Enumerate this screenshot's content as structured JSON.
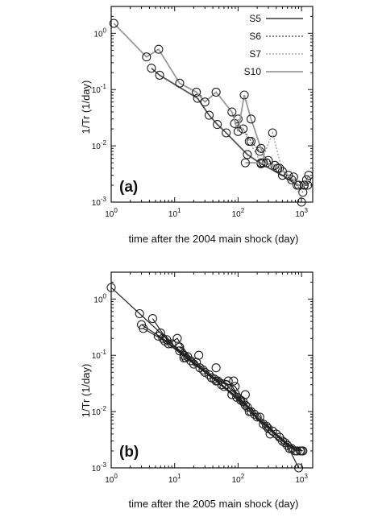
{
  "chart_data": [
    {
      "panel": "(a)",
      "type": "line",
      "xscale": "log",
      "yscale": "log",
      "xlabel": "time after the 2004 main shock (day)",
      "ylabel": "1/Tr (1/day)",
      "xlim": [
        1,
        1500
      ],
      "ylim": [
        0.001,
        3
      ],
      "xticks": [
        {
          "v": 1,
          "b": "10",
          "e": "0"
        },
        {
          "v": 10,
          "b": "10",
          "e": "1"
        },
        {
          "v": 100,
          "b": "10",
          "e": "2"
        },
        {
          "v": 1000,
          "b": "10",
          "e": "3"
        }
      ],
      "yticks": [
        {
          "v": 0.001,
          "b": "10",
          "e": "-3"
        },
        {
          "v": 0.01,
          "b": "10",
          "e": "-2"
        },
        {
          "v": 0.1,
          "b": "10",
          "e": "-1"
        },
        {
          "v": 1,
          "b": "10",
          "e": "0"
        }
      ],
      "legend_position": "top-right",
      "series": [
        {
          "name": "S5",
          "color": "#555555",
          "width": 1.8,
          "dash": "",
          "x": [
            4.3,
            5.8,
            23,
            35,
            47,
            65,
            140,
            230,
            500,
            850,
            1100,
            1250
          ],
          "y": [
            0.24,
            0.18,
            0.07,
            0.035,
            0.024,
            0.017,
            0.007,
            0.0048,
            0.003,
            0.002,
            0.002,
            0.002
          ]
        },
        {
          "name": "S6",
          "color": "#444444",
          "width": 1.3,
          "dash": "2,2",
          "x": [
            88,
            120,
            160,
            220,
            300,
            450,
            700,
            1050
          ],
          "y": [
            0.025,
            0.02,
            0.012,
            0.008,
            0.0055,
            0.004,
            0.0025,
            0.0015
          ]
        },
        {
          "name": "S7",
          "color": "#999999",
          "width": 1.3,
          "dash": "2,2",
          "x": [
            100,
            150,
            230,
            350,
            500,
            750,
            1000
          ],
          "y": [
            0.03,
            0.012,
            0.005,
            0.017,
            0.0035,
            0.0028,
            0.001
          ]
        },
        {
          "name": "S10",
          "color": "#999999",
          "width": 1.8,
          "dash": "",
          "x": [
            1.1,
            3.6,
            5.6,
            12,
            22,
            30,
            45,
            80,
            100,
            125,
            160,
            230,
            280,
            380,
            620,
            900,
            1100,
            1200,
            1300
          ],
          "y": [
            1.5,
            0.38,
            0.52,
            0.13,
            0.09,
            0.06,
            0.09,
            0.04,
            0.018,
            0.08,
            0.03,
            0.009,
            0.005,
            0.0045,
            0.003,
            0.002,
            0.002,
            0.0025,
            0.003
          ]
        },
        {
          "name": "",
          "color": "#999999",
          "width": 1.8,
          "dash": "",
          "x": [
            130,
            250,
            420
          ],
          "y": [
            0.005,
            0.005,
            0.004
          ]
        }
      ]
    },
    {
      "panel": "(b)",
      "type": "line",
      "xscale": "log",
      "yscale": "log",
      "xlabel": "time after the 2005 main shock (day)",
      "ylabel": "1/Tr (1/day)",
      "xlim": [
        1,
        1500
      ],
      "ylim": [
        0.001,
        3
      ],
      "xticks": [
        {
          "v": 1,
          "b": "10",
          "e": "0"
        },
        {
          "v": 10,
          "b": "10",
          "e": "1"
        },
        {
          "v": 100,
          "b": "10",
          "e": "2"
        },
        {
          "v": 1000,
          "b": "10",
          "e": "3"
        }
      ],
      "yticks": [
        {
          "v": 0.001,
          "b": "10",
          "e": "-3"
        },
        {
          "v": 0.01,
          "b": "10",
          "e": "-2"
        },
        {
          "v": 0.1,
          "b": "10",
          "e": "-1"
        },
        {
          "v": 1,
          "b": "10",
          "e": "0"
        }
      ],
      "series": [
        {
          "name": "",
          "color": "#222222",
          "width": 1.2,
          "dash": "",
          "x": [
            1.0,
            2.8,
            6.0,
            12,
            25,
            45,
            80,
            150,
            300,
            600,
            900
          ],
          "y": [
            1.6,
            0.55,
            0.25,
            0.12,
            0.06,
            0.035,
            0.02,
            0.01,
            0.005,
            0.0025,
            0.001
          ]
        },
        {
          "name": "",
          "color": "#222222",
          "width": 1.2,
          "dash": "",
          "x": [
            3.0,
            6.5,
            14,
            28,
            55,
            95,
            180,
            350,
            700,
            950
          ],
          "y": [
            0.35,
            0.2,
            0.1,
            0.055,
            0.03,
            0.018,
            0.009,
            0.0045,
            0.0022,
            0.002
          ]
        },
        {
          "name": "",
          "color": "#222222",
          "width": 1.2,
          "dash": "",
          "x": [
            3.2,
            7.0,
            15,
            30,
            60,
            110,
            200,
            400,
            850
          ],
          "y": [
            0.3,
            0.18,
            0.09,
            0.05,
            0.028,
            0.016,
            0.008,
            0.004,
            0.002
          ]
        },
        {
          "name": "",
          "color": "#222222",
          "width": 1.2,
          "dash": "",
          "x": [
            4.5,
            7.5,
            16,
            35,
            65,
            120,
            220,
            450,
            800
          ],
          "y": [
            0.45,
            0.19,
            0.095,
            0.045,
            0.03,
            0.015,
            0.008,
            0.0035,
            0.002
          ]
        },
        {
          "name": "",
          "color": "#222222",
          "width": 1.2,
          "dash": "",
          "x": [
            5.5,
            9,
            18,
            38,
            70,
            130,
            250,
            500,
            1000
          ],
          "y": [
            0.22,
            0.16,
            0.08,
            0.04,
            0.035,
            0.013,
            0.006,
            0.003,
            0.002
          ]
        },
        {
          "name": "",
          "color": "#222222",
          "width": 1.2,
          "dash": "",
          "x": [
            8,
            11,
            20,
            42,
            80,
            140,
            280,
            550,
            1050
          ],
          "y": [
            0.16,
            0.2,
            0.07,
            0.038,
            0.02,
            0.012,
            0.0055,
            0.0028,
            0.002
          ]
        },
        {
          "name": "",
          "color": "#222222",
          "width": 1.2,
          "dash": "",
          "x": [
            12,
            22,
            48,
            90,
            160,
            320,
            650
          ],
          "y": [
            0.14,
            0.075,
            0.035,
            0.028,
            0.01,
            0.004,
            0.0022
          ]
        }
      ],
      "outliers": {
        "x": [
          14,
          24,
          45,
          85,
          130
        ],
        "y": [
          0.09,
          0.1,
          0.06,
          0.035,
          0.02
        ]
      }
    }
  ]
}
